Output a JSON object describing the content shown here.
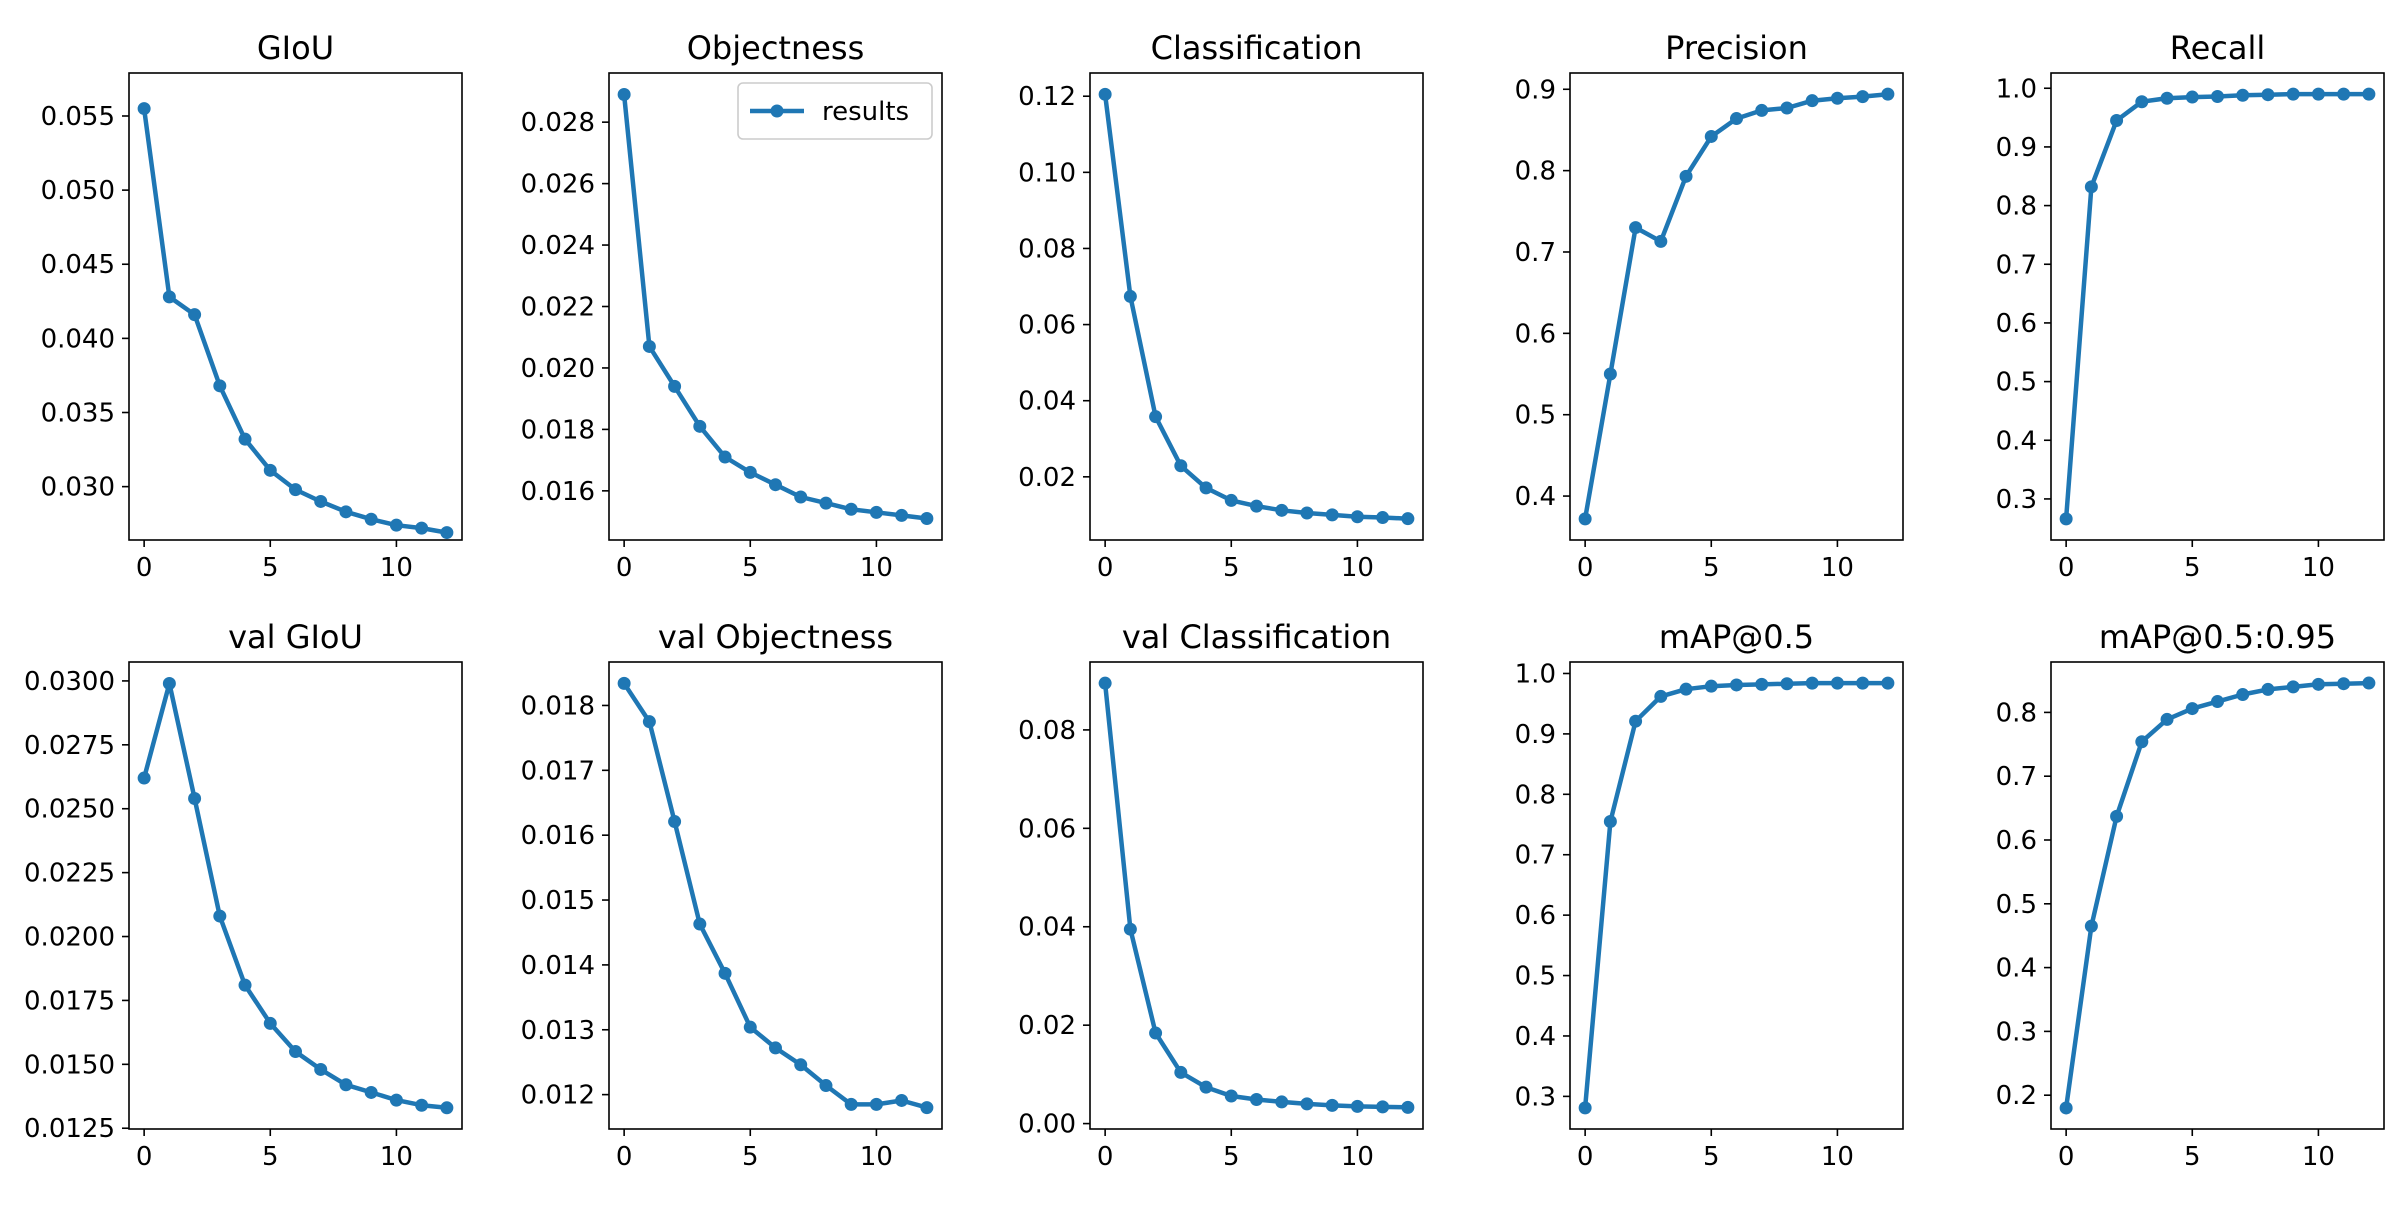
{
  "chart_data": [
    {
      "type": "line",
      "title": "GIoU",
      "series": [
        {
          "name": "results",
          "values": [
            0.0555,
            0.0428,
            0.0416,
            0.0368,
            0.0332,
            0.0311,
            0.0298,
            0.029,
            0.0283,
            0.0278,
            0.0274,
            0.0272,
            0.0269
          ]
        }
      ],
      "x": [
        0,
        1,
        2,
        3,
        4,
        5,
        6,
        7,
        8,
        9,
        10,
        11,
        12
      ],
      "xlim": [
        -0.6,
        12.6
      ],
      "ylim": [
        0.0264,
        0.0579
      ],
      "xticks": [
        0,
        5,
        10
      ],
      "yticks": [
        0.03,
        0.035,
        0.04,
        0.045,
        0.05,
        0.055
      ],
      "ytick_labels": [
        "0.030",
        "0.035",
        "0.040",
        "0.045",
        "0.050",
        "0.055"
      ],
      "legend": false
    },
    {
      "type": "line",
      "title": "Objectness",
      "series": [
        {
          "name": "results",
          "values": [
            0.0289,
            0.0207,
            0.0194,
            0.0181,
            0.0171,
            0.0166,
            0.0162,
            0.0158,
            0.0156,
            0.0154,
            0.0153,
            0.0152,
            0.0151
          ]
        }
      ],
      "x": [
        0,
        1,
        2,
        3,
        4,
        5,
        6,
        7,
        8,
        9,
        10,
        11,
        12
      ],
      "xlim": [
        -0.6,
        12.6
      ],
      "ylim": [
        0.0144,
        0.0296
      ],
      "xticks": [
        0,
        5,
        10
      ],
      "yticks": [
        0.016,
        0.018,
        0.02,
        0.022,
        0.024,
        0.026,
        0.028
      ],
      "ytick_labels": [
        "0.016",
        "0.018",
        "0.020",
        "0.022",
        "0.024",
        "0.026",
        "0.028"
      ],
      "legend": true,
      "legend_position": "upper right"
    },
    {
      "type": "line",
      "title": "Classification",
      "series": [
        {
          "name": "results",
          "values": [
            0.1205,
            0.0674,
            0.0358,
            0.0229,
            0.0171,
            0.0138,
            0.0123,
            0.0112,
            0.0105,
            0.01,
            0.0095,
            0.0093,
            0.009
          ]
        }
      ],
      "x": [
        0,
        1,
        2,
        3,
        4,
        5,
        6,
        7,
        8,
        9,
        10,
        11,
        12
      ],
      "xlim": [
        -0.6,
        12.6
      ],
      "ylim": [
        0.0034,
        0.1261
      ],
      "xticks": [
        0,
        5,
        10
      ],
      "yticks": [
        0.02,
        0.04,
        0.06,
        0.08,
        0.1,
        0.12
      ],
      "ytick_labels": [
        "0.02",
        "0.04",
        "0.06",
        "0.08",
        "0.10",
        "0.12"
      ],
      "legend": false
    },
    {
      "type": "line",
      "title": "Precision",
      "series": [
        {
          "name": "results",
          "values": [
            0.372,
            0.55,
            0.73,
            0.713,
            0.793,
            0.842,
            0.864,
            0.874,
            0.877,
            0.886,
            0.889,
            0.891,
            0.894
          ]
        }
      ],
      "x": [
        0,
        1,
        2,
        3,
        4,
        5,
        6,
        7,
        8,
        9,
        10,
        11,
        12
      ],
      "xlim": [
        -0.6,
        12.6
      ],
      "ylim": [
        0.346,
        0.92
      ],
      "xticks": [
        0,
        5,
        10
      ],
      "yticks": [
        0.4,
        0.5,
        0.6,
        0.7,
        0.8,
        0.9
      ],
      "ytick_labels": [
        "0.4",
        "0.5",
        "0.6",
        "0.7",
        "0.8",
        "0.9"
      ],
      "legend": false
    },
    {
      "type": "line",
      "title": "Recall",
      "series": [
        {
          "name": "results",
          "values": [
            0.266,
            0.832,
            0.945,
            0.977,
            0.983,
            0.985,
            0.986,
            0.988,
            0.989,
            0.99,
            0.99,
            0.99,
            0.99
          ]
        }
      ],
      "x": [
        0,
        1,
        2,
        3,
        4,
        5,
        6,
        7,
        8,
        9,
        10,
        11,
        12
      ],
      "xlim": [
        -0.6,
        12.6
      ],
      "ylim": [
        0.23,
        1.026
      ],
      "xticks": [
        0,
        5,
        10
      ],
      "yticks": [
        0.3,
        0.4,
        0.5,
        0.6,
        0.7,
        0.8,
        0.9,
        1.0
      ],
      "ytick_labels": [
        "0.3",
        "0.4",
        "0.5",
        "0.6",
        "0.7",
        "0.8",
        "0.9",
        "1.0"
      ],
      "legend": false
    },
    {
      "type": "line",
      "title": "val GIoU",
      "series": [
        {
          "name": "results",
          "values": [
            0.0262,
            0.0299,
            0.0254,
            0.0208,
            0.0181,
            0.0166,
            0.0155,
            0.0148,
            0.0142,
            0.0139,
            0.0136,
            0.0134,
            0.0133
          ]
        }
      ],
      "x": [
        0,
        1,
        2,
        3,
        4,
        5,
        6,
        7,
        8,
        9,
        10,
        11,
        12
      ],
      "xlim": [
        -0.6,
        12.6
      ],
      "ylim": [
        0.01247,
        0.03074
      ],
      "xticks": [
        0,
        5,
        10
      ],
      "yticks": [
        0.0125,
        0.015,
        0.0175,
        0.02,
        0.0225,
        0.025,
        0.0275,
        0.03
      ],
      "ytick_labels": [
        "0.0125",
        "0.0150",
        "0.0175",
        "0.0200",
        "0.0225",
        "0.0250",
        "0.0275",
        "0.0300"
      ],
      "legend": false
    },
    {
      "type": "line",
      "title": "val Objectness",
      "series": [
        {
          "name": "results",
          "values": [
            0.01834,
            0.01775,
            0.01621,
            0.01463,
            0.01387,
            0.01304,
            0.01272,
            0.01246,
            0.01214,
            0.01185,
            0.01185,
            0.01191,
            0.0118
          ]
        }
      ],
      "x": [
        0,
        1,
        2,
        3,
        4,
        5,
        6,
        7,
        8,
        9,
        10,
        11,
        12
      ],
      "xlim": [
        -0.6,
        12.6
      ],
      "ylim": [
        0.01147,
        0.01867
      ],
      "xticks": [
        0,
        5,
        10
      ],
      "yticks": [
        0.012,
        0.013,
        0.014,
        0.015,
        0.016,
        0.017,
        0.018
      ],
      "ytick_labels": [
        "0.012",
        "0.013",
        "0.014",
        "0.015",
        "0.016",
        "0.017",
        "0.018"
      ],
      "legend": false
    },
    {
      "type": "line",
      "title": "val Classification",
      "series": [
        {
          "name": "results",
          "values": [
            0.0895,
            0.0395,
            0.0184,
            0.0104,
            0.0074,
            0.0056,
            0.0049,
            0.0044,
            0.004,
            0.0037,
            0.0035,
            0.0034,
            0.0033
          ]
        }
      ],
      "x": [
        0,
        1,
        2,
        3,
        4,
        5,
        6,
        7,
        8,
        9,
        10,
        11,
        12
      ],
      "xlim": [
        -0.6,
        12.6
      ],
      "ylim": [
        -0.0011,
        0.0938
      ],
      "xticks": [
        0,
        5,
        10
      ],
      "yticks": [
        0.0,
        0.02,
        0.04,
        0.06,
        0.08
      ],
      "ytick_labels": [
        "0.00",
        "0.02",
        "0.04",
        "0.06",
        "0.08"
      ],
      "legend": false
    },
    {
      "type": "line",
      "title": "mAP@0.5",
      "series": [
        {
          "name": "results",
          "values": [
            0.281,
            0.755,
            0.921,
            0.962,
            0.974,
            0.979,
            0.981,
            0.982,
            0.983,
            0.984,
            0.984,
            0.984,
            0.984
          ]
        }
      ],
      "x": [
        0,
        1,
        2,
        3,
        4,
        5,
        6,
        7,
        8,
        9,
        10,
        11,
        12
      ],
      "xlim": [
        -0.6,
        12.6
      ],
      "ylim": [
        0.246,
        1.019
      ],
      "xticks": [
        0,
        5,
        10
      ],
      "yticks": [
        0.3,
        0.4,
        0.5,
        0.6,
        0.7,
        0.8,
        0.9,
        1.0
      ],
      "ytick_labels": [
        "0.3",
        "0.4",
        "0.5",
        "0.6",
        "0.7",
        "0.8",
        "0.9",
        "1.0"
      ],
      "legend": false
    },
    {
      "type": "line",
      "title": "mAP@0.5:0.95",
      "series": [
        {
          "name": "results",
          "values": [
            0.18,
            0.465,
            0.637,
            0.754,
            0.789,
            0.806,
            0.817,
            0.828,
            0.836,
            0.84,
            0.844,
            0.845,
            0.846
          ]
        }
      ],
      "x": [
        0,
        1,
        2,
        3,
        4,
        5,
        6,
        7,
        8,
        9,
        10,
        11,
        12
      ],
      "xlim": [
        -0.6,
        12.6
      ],
      "ylim": [
        0.147,
        0.879
      ],
      "xticks": [
        0,
        5,
        10
      ],
      "yticks": [
        0.2,
        0.3,
        0.4,
        0.5,
        0.6,
        0.7,
        0.8
      ],
      "ytick_labels": [
        "0.2",
        "0.3",
        "0.4",
        "0.5",
        "0.6",
        "0.7",
        "0.8"
      ],
      "legend": false
    }
  ],
  "style": {
    "line_color": "#1f77b4",
    "axis_color": "#000000",
    "background": "#ffffff"
  },
  "legend": {
    "label": "results"
  }
}
